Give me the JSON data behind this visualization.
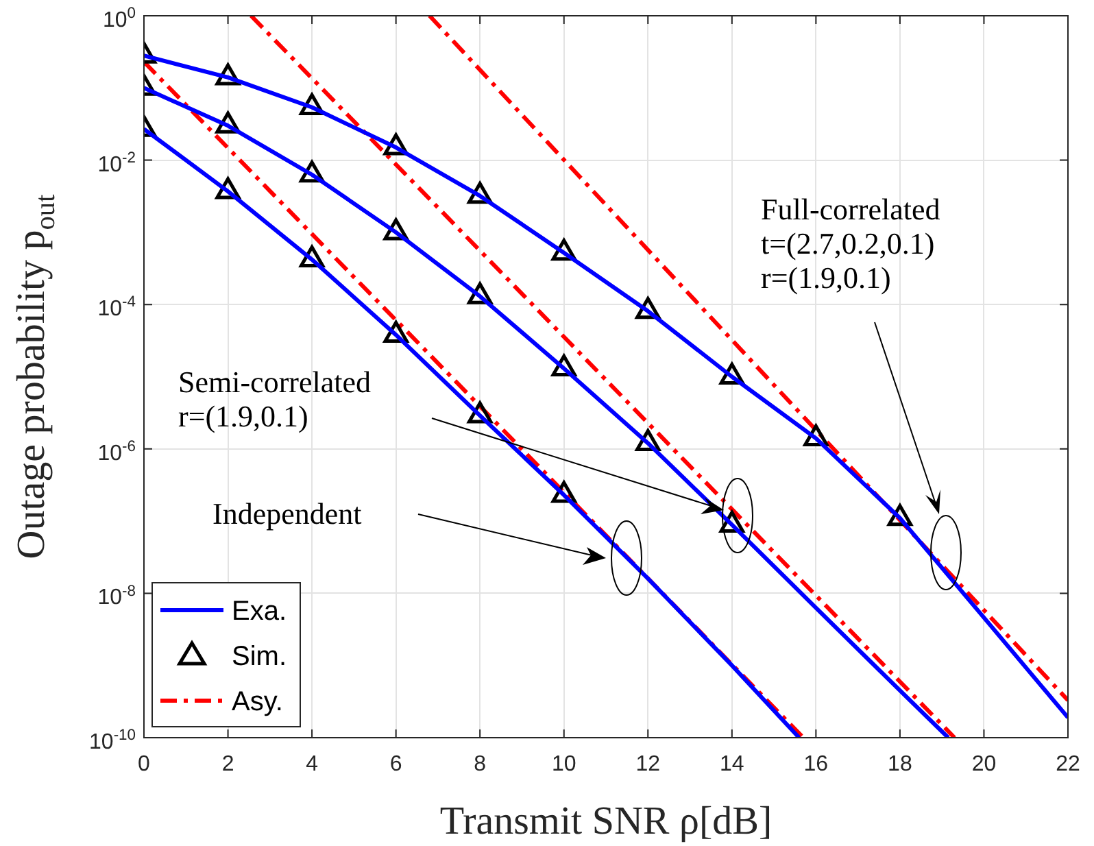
{
  "chart_data": {
    "type": "line",
    "xlabel": "Transmit SNR ρ[dB]",
    "ylabel": "Outage probability p$_{out}$",
    "xlim": [
      0,
      22
    ],
    "xticks": [
      0,
      2,
      4,
      6,
      8,
      10,
      12,
      14,
      16,
      18,
      20,
      22
    ],
    "ylim": [
      1e-10,
      1
    ],
    "yticks": [
      {
        "value": 1,
        "label": "10$^{0}$"
      },
      {
        "value": 0.01,
        "label": "10$^{-2}$"
      },
      {
        "value": 0.0001,
        "label": "10$^{-4}$"
      },
      {
        "value": 1e-06,
        "label": "10$^{-6}$"
      },
      {
        "value": 1e-08,
        "label": "10$^{-8}$"
      },
      {
        "value": 1e-10,
        "label": "10$^{-10}$"
      }
    ],
    "log": "y",
    "grid": true,
    "legend": "bottom left",
    "series": [
      {
        "name": "Exa.",
        "color": "#0000ff",
        "marker": "none",
        "line_style": "solid",
        "x": [
          0,
          2,
          4,
          6,
          8,
          10,
          12,
          14,
          16,
          18,
          20,
          22
        ],
        "values": [
          0.28,
          0.14,
          0.054,
          0.015,
          0.0032,
          0.00052,
          8.1e-05,
          1e-05,
          1.4e-06,
          1.1e-07,
          4.6e-09,
          1.9e-10
        ]
      },
      {
        "color": "#0000ff",
        "marker": "none",
        "line_style": "solid",
        "x": [
          0,
          2,
          4,
          6,
          8,
          10,
          12,
          14,
          16,
          18,
          19.15
        ],
        "values": [
          0.1,
          0.03,
          0.0063,
          0.001,
          0.00013,
          1.3e-05,
          1.2e-06,
          8.9e-08,
          6.3e-09,
          4.5e-10,
          1e-10
        ]
      },
      {
        "color": "#0000ff",
        "marker": "none",
        "line_style": "solid",
        "x": [
          0,
          2,
          4,
          6,
          8,
          10,
          12,
          14,
          15.6
        ],
        "values": [
          0.027,
          0.0037,
          0.00042,
          3.8e-05,
          2.9e-06,
          2.3e-07,
          1.6e-08,
          1e-09,
          1e-10
        ]
      },
      {
        "name": "Sim.",
        "type": "scatter",
        "color": "#000000",
        "marker": "triangle",
        "x": [
          0,
          2,
          4,
          6,
          8,
          10,
          12,
          14,
          16,
          18
        ],
        "values": [
          0.28,
          0.14,
          0.054,
          0.015,
          0.0032,
          0.00052,
          8.1e-05,
          1e-05,
          1.4e-06,
          1.1e-07
        ]
      },
      {
        "type": "scatter",
        "color": "#000000",
        "marker": "triangle",
        "x": [
          0,
          2,
          4,
          6,
          8,
          10,
          12,
          14
        ],
        "values": [
          0.1,
          0.03,
          0.0063,
          0.001,
          0.00013,
          1.3e-05,
          1.2e-06,
          8.9e-08
        ]
      },
      {
        "type": "scatter",
        "color": "#000000",
        "marker": "triangle",
        "x": [
          0,
          2,
          4,
          6,
          8,
          10
        ],
        "values": [
          0.027,
          0.0037,
          0.00042,
          3.8e-05,
          2.9e-06,
          2.3e-07
        ]
      },
      {
        "name": "Asy.",
        "color": "#ff0000",
        "marker": "none",
        "line_style": "dashed",
        "x": [
          0,
          15.7
        ],
        "values": [
          0.23,
          1e-10
        ]
      },
      {
        "color": "#ff0000",
        "marker": "none",
        "line_style": "dashed",
        "x": [
          2.55,
          19.3
        ],
        "values": [
          1,
          1e-10
        ]
      },
      {
        "color": "#ff0000",
        "marker": "none",
        "line_style": "dashed",
        "x": [
          6.8,
          22
        ],
        "values": [
          1,
          3.3e-10
        ]
      }
    ],
    "annotations": [
      "Full-correlated\nt=(2.7,0.2,0.1)\nr=(1.9,0.1)",
      "Semi-correlated\nr=(1.9,0.1)",
      "Independent"
    ]
  }
}
